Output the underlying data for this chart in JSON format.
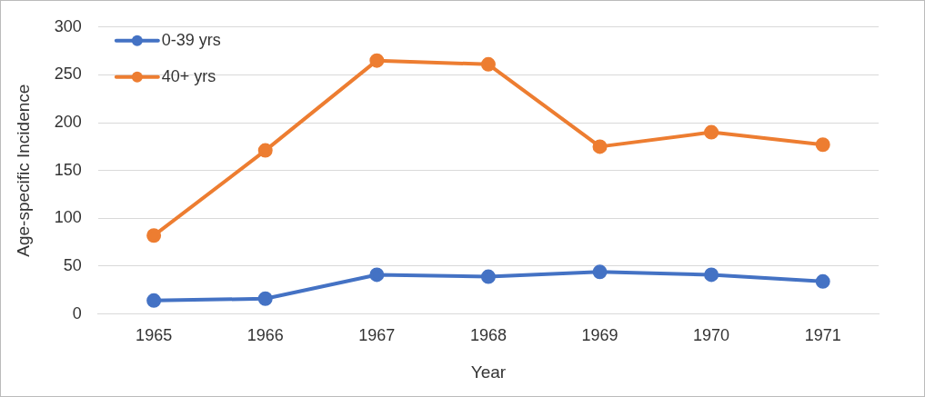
{
  "chart_data": {
    "type": "line",
    "xlabel": "Year",
    "ylabel": "Age-specific Incidence",
    "categories": [
      "1965",
      "1966",
      "1967",
      "1968",
      "1969",
      "1970",
      "1971"
    ],
    "series": [
      {
        "name": "0-39 yrs",
        "color": "#4472c4",
        "values": [
          14,
          16,
          41,
          39,
          44,
          41,
          34
        ]
      },
      {
        "name": "40+ yrs",
        "color": "#ed7d31",
        "values": [
          82,
          171,
          265,
          261,
          175,
          190,
          177
        ]
      }
    ],
    "ylim": [
      0,
      300
    ],
    "yticks": [
      0,
      50,
      100,
      150,
      200,
      250,
      300
    ],
    "grid": "y",
    "legend": "top left",
    "marker": "circle",
    "line_style": "solid"
  }
}
